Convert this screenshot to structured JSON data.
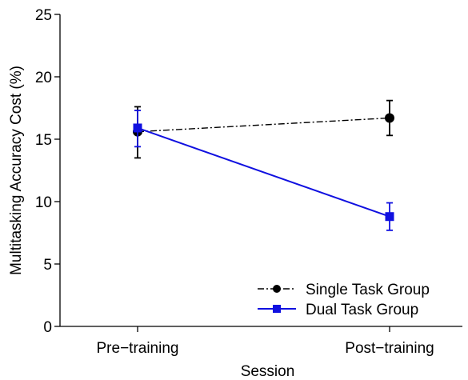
{
  "chart_data": {
    "type": "line",
    "categories": [
      "Pre−training",
      "Post−training"
    ],
    "xlabel": "Session",
    "ylabel": "Multitasking Accuracy Cost (%)",
    "ylim": [
      0,
      25
    ],
    "yticks": [
      "0",
      "5",
      "10",
      "15",
      "20",
      "25"
    ],
    "grid": false,
    "legend_position": "bottom-right",
    "series": [
      {
        "name": "Single Task Group",
        "values": [
          15.6,
          16.7
        ],
        "error_low": [
          13.5,
          15.3
        ],
        "error_high": [
          17.6,
          18.1
        ],
        "color": "#000000",
        "line_style": "dash-dot",
        "marker": "circle"
      },
      {
        "name": "Dual Task Group",
        "values": [
          15.9,
          8.8
        ],
        "error_low": [
          14.4,
          7.7
        ],
        "error_high": [
          17.3,
          9.9
        ],
        "color": "#1010e0",
        "line_style": "solid",
        "marker": "square"
      }
    ]
  }
}
